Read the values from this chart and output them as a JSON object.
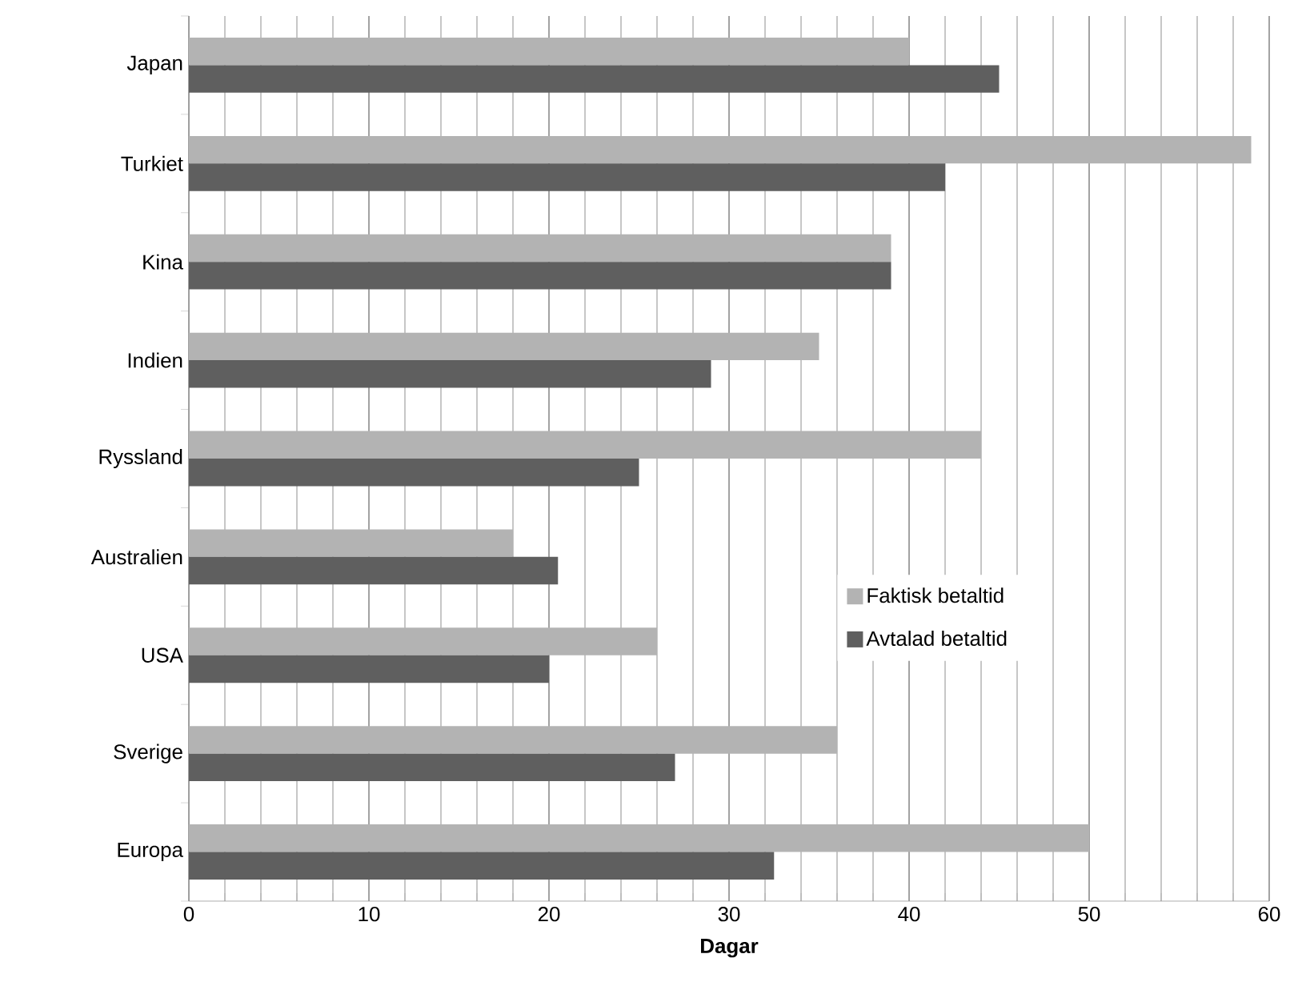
{
  "chart_data": {
    "type": "bar",
    "orientation": "horizontal",
    "xlabel": "Dagar",
    "categories": [
      "Japan",
      "Turkiet",
      "Kina",
      "Indien",
      "Ryssland",
      "Australien",
      "USA",
      "Sverige",
      "Europa"
    ],
    "series": [
      {
        "name": "Faktisk betaltid",
        "color": "#b3b3b3",
        "values": [
          40,
          59,
          39,
          35,
          44,
          18,
          26,
          36,
          50
        ]
      },
      {
        "name": "Avtalad betaltid",
        "color": "#5f5f5f",
        "values": [
          45,
          42,
          39,
          29,
          25,
          20.5,
          20,
          27,
          32.5
        ]
      }
    ],
    "xlim": [
      0,
      60
    ],
    "xticks": [
      0,
      10,
      20,
      30,
      40,
      50,
      60
    ],
    "grid": "x",
    "legend": "right"
  }
}
